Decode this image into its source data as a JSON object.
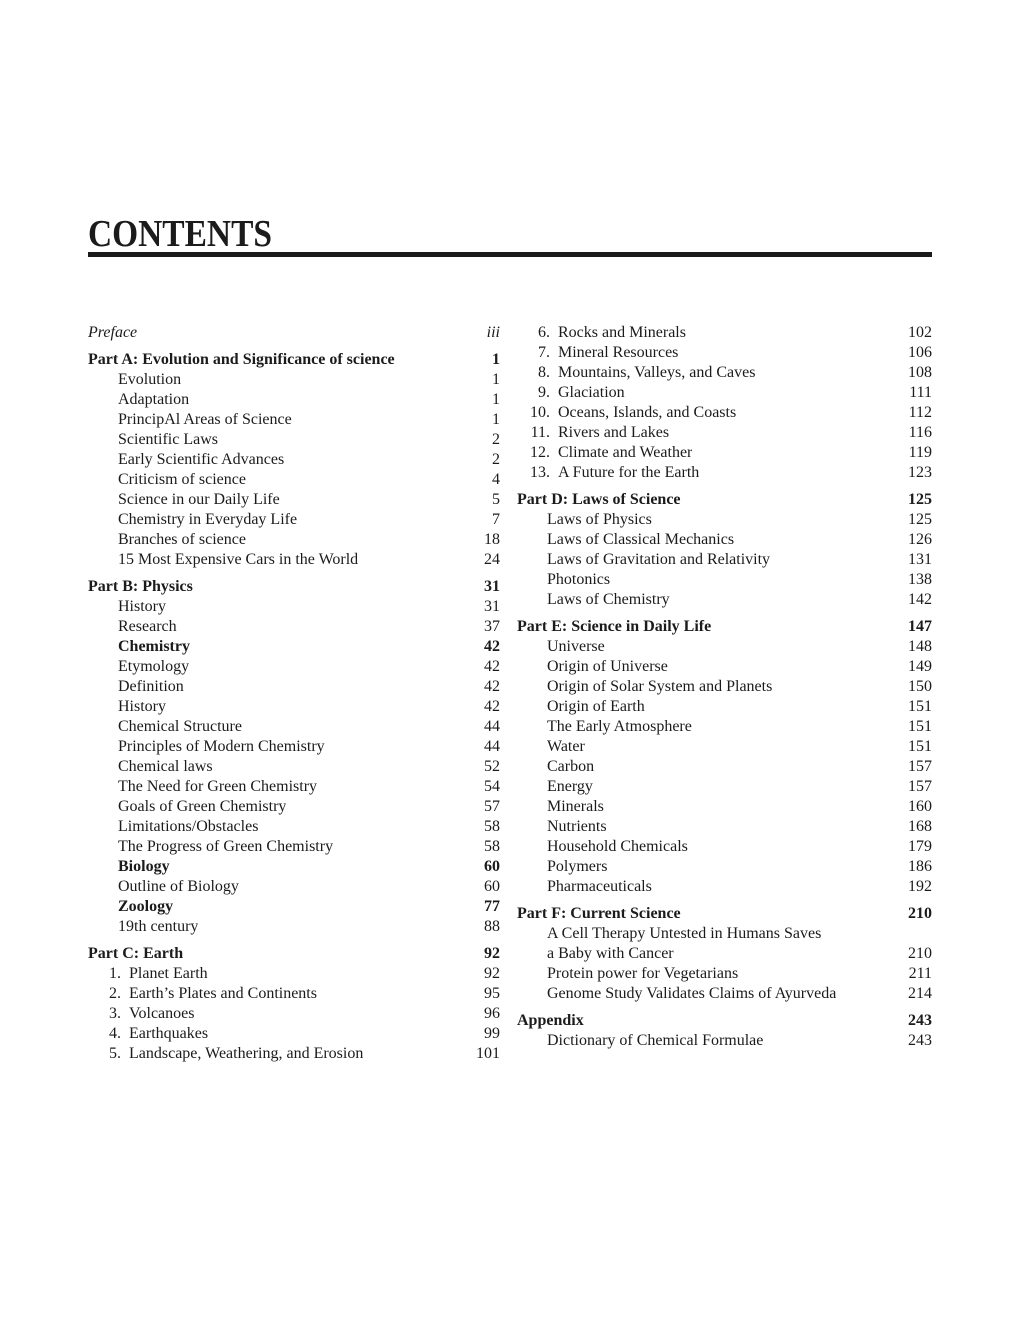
{
  "page": {
    "title": "CONTENTS",
    "ink_color": "#1b1b1b",
    "background_color": "#ffffff"
  },
  "toc": {
    "left": [
      {
        "type": "preface",
        "label": "Preface",
        "page": "iii"
      },
      {
        "type": "part",
        "label": "Part A: Evolution and Significance of science",
        "page": "1"
      },
      {
        "type": "item",
        "label": "Evolution",
        "page": "1"
      },
      {
        "type": "item",
        "label": "Adaptation",
        "page": "1"
      },
      {
        "type": "item",
        "label": "PrincipAl Areas of Science",
        "page": "1"
      },
      {
        "type": "item",
        "label": "Scientific Laws",
        "page": "2"
      },
      {
        "type": "item",
        "label": "Early Scientific Advances",
        "page": "2"
      },
      {
        "type": "item",
        "label": "Criticism of science",
        "page": "4"
      },
      {
        "type": "item",
        "label": "Science in our Daily Life",
        "page": "5"
      },
      {
        "type": "item",
        "label": "Chemistry in Everyday Life",
        "page": "7"
      },
      {
        "type": "item",
        "label": "Branches of science",
        "page": "18"
      },
      {
        "type": "item",
        "label": "15 Most Expensive Cars in the World",
        "page": "24"
      },
      {
        "type": "part",
        "label": "Part B: Physics",
        "page": "31"
      },
      {
        "type": "item",
        "label": "History",
        "page": "31"
      },
      {
        "type": "item",
        "label": "Research",
        "page": "37"
      },
      {
        "type": "item-bold",
        "label": "Chemistry",
        "page": "42"
      },
      {
        "type": "item",
        "label": "Etymology",
        "page": "42"
      },
      {
        "type": "item",
        "label": "Definition",
        "page": "42"
      },
      {
        "type": "item",
        "label": "History",
        "page": "42"
      },
      {
        "type": "item",
        "label": "Chemical Structure",
        "page": "44"
      },
      {
        "type": "item",
        "label": "Principles of Modern Chemistry",
        "page": "44"
      },
      {
        "type": "item",
        "label": "Chemical laws",
        "page": "52"
      },
      {
        "type": "item",
        "label": "The Need for Green Chemistry",
        "page": "54"
      },
      {
        "type": "item",
        "label": "Goals of Green Chemistry",
        "page": "57"
      },
      {
        "type": "item",
        "label": "Limitations/Obstacles",
        "page": "58"
      },
      {
        "type": "item",
        "label": "The Progress of Green Chemistry",
        "page": "58"
      },
      {
        "type": "item-bold",
        "label": "Biology",
        "page": "60"
      },
      {
        "type": "item",
        "label": "Outline of Biology",
        "page": "60"
      },
      {
        "type": "item-bold",
        "label": "Zoology",
        "page": "77"
      },
      {
        "type": "item",
        "label": "19th century",
        "page": "88"
      },
      {
        "type": "part",
        "label": "Part C: Earth",
        "page": "92"
      },
      {
        "type": "num-item",
        "num": "1.",
        "label": "Planet Earth",
        "page": "92"
      },
      {
        "type": "num-item",
        "num": "2.",
        "label": "Earth’s Plates and Continents",
        "page": "95"
      },
      {
        "type": "num-item",
        "num": "3.",
        "label": "Volcanoes",
        "page": "96"
      },
      {
        "type": "num-item",
        "num": "4.",
        "label": "Earthquakes",
        "page": "99"
      },
      {
        "type": "num-item",
        "num": "5.",
        "label": "Landscape, Weathering, and Erosion",
        "page": "101"
      }
    ],
    "right": [
      {
        "type": "num-item",
        "num": "6.",
        "label": "Rocks and Minerals",
        "page": "102"
      },
      {
        "type": "num-item",
        "num": "7.",
        "label": "Mineral Resources",
        "page": "106"
      },
      {
        "type": "num-item",
        "num": "8.",
        "label": "Mountains, Valleys, and Caves",
        "page": "108"
      },
      {
        "type": "num-item",
        "num": "9.",
        "label": "Glaciation",
        "page": "111"
      },
      {
        "type": "num-item",
        "num": "10.",
        "label": "Oceans, Islands, and Coasts",
        "page": "112"
      },
      {
        "type": "num-item",
        "num": "11.",
        "label": "Rivers and Lakes",
        "page": "116"
      },
      {
        "type": "num-item",
        "num": "12.",
        "label": "Climate and Weather",
        "page": "119"
      },
      {
        "type": "num-item",
        "num": "13.",
        "label": "A Future for the Earth",
        "page": "123"
      },
      {
        "type": "part",
        "label": "Part D: Laws of Science",
        "page": "125"
      },
      {
        "type": "item",
        "label": "Laws of Physics",
        "page": "125"
      },
      {
        "type": "item",
        "label": "Laws of Classical Mechanics",
        "page": "126"
      },
      {
        "type": "item",
        "label": "Laws of Gravitation and Relativity",
        "page": "131"
      },
      {
        "type": "item",
        "label": "Photonics",
        "page": "138"
      },
      {
        "type": "item",
        "label": "Laws of Chemistry",
        "page": "142"
      },
      {
        "type": "part",
        "label": "Part E: Science in Daily Life",
        "page": "147"
      },
      {
        "type": "item",
        "label": "Universe",
        "page": "148"
      },
      {
        "type": "item",
        "label": "Origin of Universe",
        "page": "149"
      },
      {
        "type": "item",
        "label": "Origin of Solar System and Planets",
        "page": "150"
      },
      {
        "type": "item",
        "label": "Origin of Earth",
        "page": "151"
      },
      {
        "type": "item",
        "label": "The Early Atmosphere",
        "page": "151"
      },
      {
        "type": "item",
        "label": "Water",
        "page": "151"
      },
      {
        "type": "item",
        "label": "Carbon",
        "page": "157"
      },
      {
        "type": "item",
        "label": "Energy",
        "page": "157"
      },
      {
        "type": "item",
        "label": "Minerals",
        "page": "160"
      },
      {
        "type": "item",
        "label": "Nutrients",
        "page": "168"
      },
      {
        "type": "item",
        "label": "Household Chemicals",
        "page": "179"
      },
      {
        "type": "item",
        "label": "Polymers",
        "page": "186"
      },
      {
        "type": "item",
        "label": "Pharmaceuticals",
        "page": "192"
      },
      {
        "type": "part",
        "label": "Part F: Current Science",
        "page": "210"
      },
      {
        "type": "item",
        "label": "A Cell Therapy Untested in Humans Saves",
        "page": ""
      },
      {
        "type": "item",
        "label": "a Baby with Cancer",
        "page": "210"
      },
      {
        "type": "item",
        "label": "Protein power for Vegetarians",
        "page": "211"
      },
      {
        "type": "item",
        "label": "Genome Study Validates Claims of Ayurveda",
        "page": "214"
      },
      {
        "type": "part",
        "label": "Appendix",
        "page": "243"
      },
      {
        "type": "item",
        "label": "Dictionary of Chemical Formulae",
        "page": "243"
      }
    ]
  }
}
